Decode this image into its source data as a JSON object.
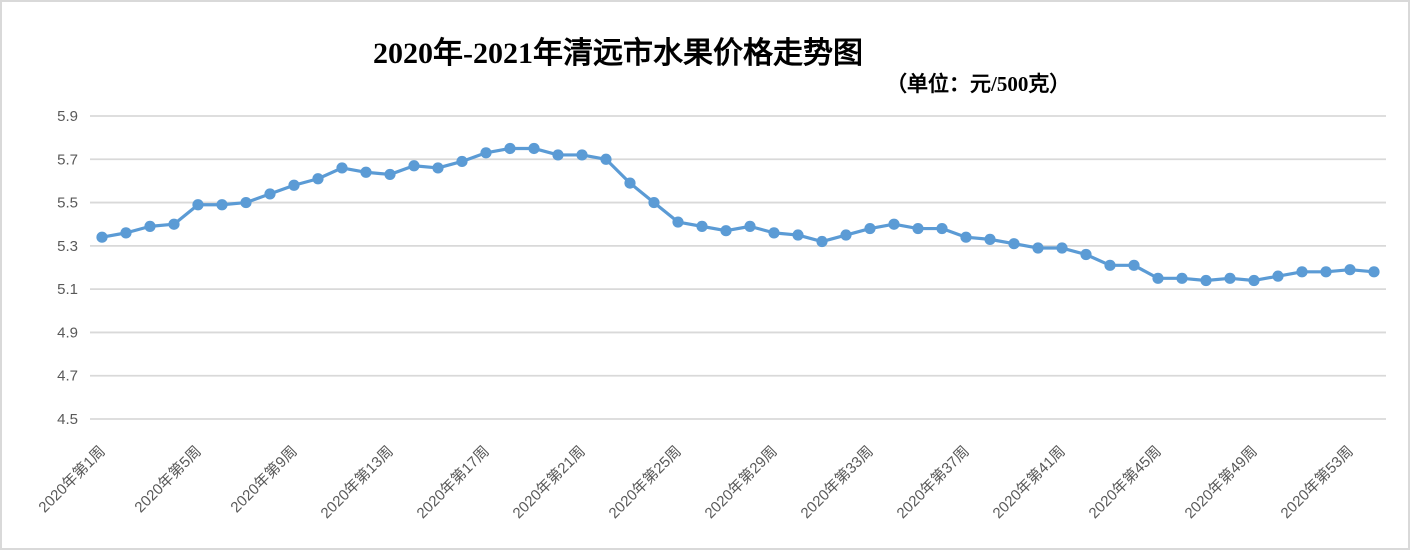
{
  "chart": {
    "title": "2020年-2021年清远市水果价格走势图",
    "unit_label": "（单位：元/500克）"
  },
  "chart_data": {
    "type": "line",
    "title": "2020年-2021年清远市水果价格走势图",
    "unit_label": "（单位：元/500克）",
    "unit": "元/500克",
    "num_points": 54,
    "x_tick_positions": [
      1,
      5,
      9,
      13,
      17,
      21,
      25,
      29,
      33,
      37,
      41,
      45,
      49,
      53
    ],
    "x_tick_labels": [
      "2020年第1周",
      "2020年第5周",
      "2020年第9周",
      "2020年第13周",
      "2020年第17周",
      "2020年第21周",
      "2020年第25周",
      "2020年第29周",
      "2020年第33周",
      "2020年第37周",
      "2020年第41周",
      "2020年第45周",
      "2020年第49周",
      "2020年第53周"
    ],
    "values": [
      5.34,
      5.36,
      5.39,
      5.4,
      5.49,
      5.49,
      5.5,
      5.54,
      5.58,
      5.61,
      5.66,
      5.64,
      5.63,
      5.67,
      5.66,
      5.69,
      5.73,
      5.75,
      5.75,
      5.72,
      5.72,
      5.7,
      5.59,
      5.5,
      5.41,
      5.39,
      5.37,
      5.39,
      5.36,
      5.35,
      5.32,
      5.35,
      5.38,
      5.4,
      5.38,
      5.38,
      5.34,
      5.33,
      5.31,
      5.29,
      5.29,
      5.26,
      5.21,
      5.21,
      5.15,
      5.15,
      5.14,
      5.15,
      5.14,
      5.16,
      5.18,
      5.18,
      5.19,
      5.18
    ],
    "ylim": [
      4.5,
      5.9
    ],
    "yticks": [
      4.5,
      4.7,
      4.9,
      5.1,
      5.3,
      5.5,
      5.7,
      5.9
    ],
    "grid": true,
    "legend": "none",
    "line_color": "#5B9BD5",
    "grid_color": "#D9D9D9",
    "axis_text_color": "#595959",
    "marker": "circle"
  }
}
